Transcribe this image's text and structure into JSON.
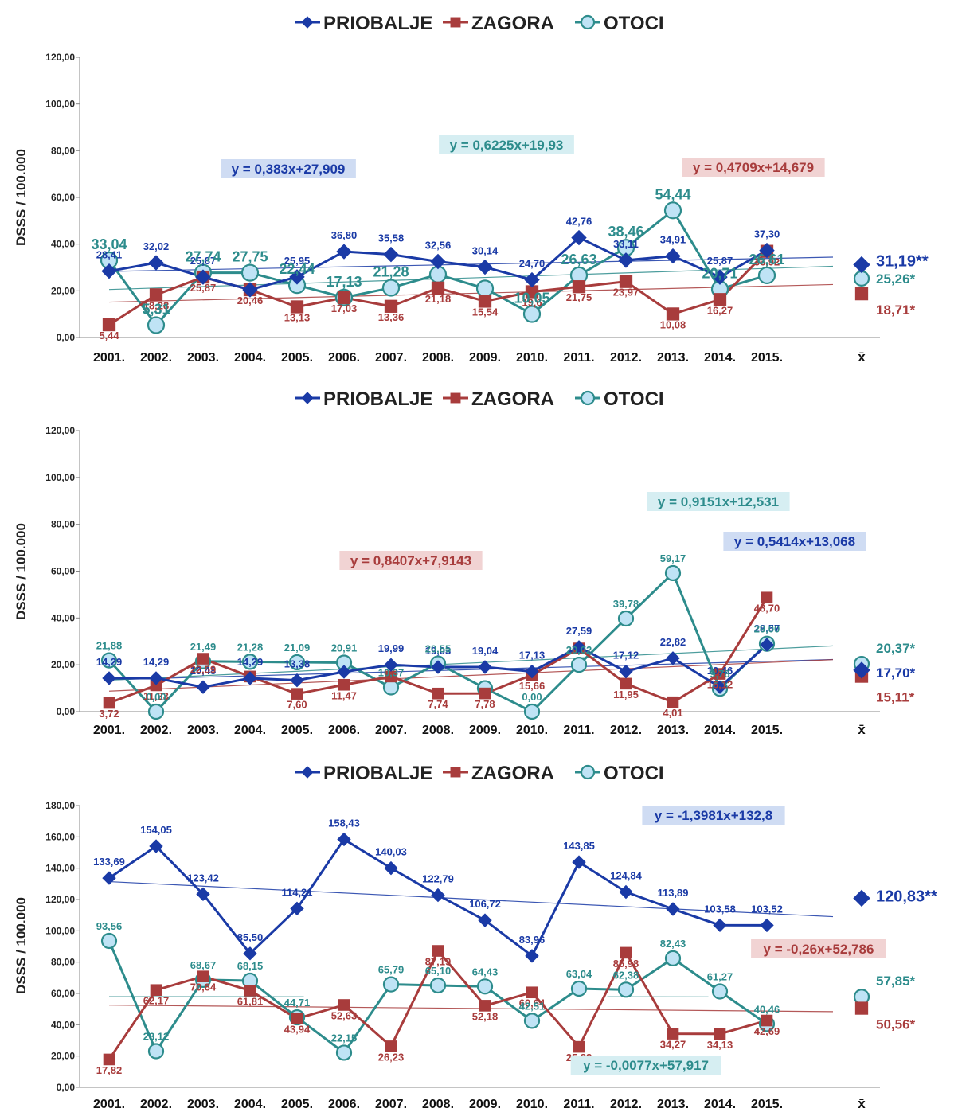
{
  "legend": {
    "series": [
      {
        "name": "PRIOBALJE",
        "color": "#1a3aa6",
        "marker": "diamond"
      },
      {
        "name": "ZAGORA",
        "color": "#a83c3c",
        "marker": "square"
      },
      {
        "name": "OTOCI",
        "color": "#2d8c8c",
        "marker": "circle"
      }
    ]
  },
  "colors": {
    "priobalje": "#1a3aa6",
    "zagora": "#a83c3c",
    "otoci": "#2d8c8c",
    "otoci_fill": "#bfe3f5",
    "blue_box": "#cfdcf3",
    "red_box": "#f1d3d3",
    "teal_box": "#d6eef2"
  },
  "chart_data": [
    {
      "type": "line",
      "ylabel": "DSSS / 100.000",
      "ylim": [
        0,
        120
      ],
      "yticks": [
        "0,00",
        "20,00",
        "40,00",
        "60,00",
        "80,00",
        "100,00",
        "120,00"
      ],
      "categories": [
        "2001.",
        "2002.",
        "2003.",
        "2004.",
        "2005.",
        "2006.",
        "2007.",
        "2008.",
        "2009.",
        "2010.",
        "2011.",
        "2012.",
        "2013.",
        "2014.",
        "2015."
      ],
      "mean_label": "x̄",
      "series": [
        {
          "name": "PRIOBALJE",
          "values": [
            28.41,
            32.02,
            25.87,
            20.46,
            25.95,
            36.8,
            35.58,
            32.56,
            30.14,
            24.7,
            42.76,
            33.11,
            34.91,
            25.87,
            37.3
          ],
          "labels": [
            "28,41",
            "32,02",
            "25,87",
            "",
            "25,95",
            "36,80",
            "35,58",
            "32,56",
            "30,14",
            "24,70",
            "42,76",
            "33,11",
            "34,91",
            "25,87",
            "37,30"
          ],
          "mean": 31.19,
          "mean_label": "31,19**",
          "trend": {
            "slope": 0.383,
            "intercept": 27.909,
            "equation": "y = 0,383x+27,909"
          }
        },
        {
          "name": "ZAGORA",
          "values": [
            5.44,
            18.28,
            25.87,
            20.46,
            13.13,
            17.03,
            13.36,
            21.18,
            15.54,
            19.6,
            21.75,
            23.97,
            10.08,
            16.27,
            36.92
          ],
          "labels": [
            "5,44",
            "18,28",
            "25,87",
            "20,46",
            "13,13",
            "17,03",
            "13,36",
            "21,18",
            "15,54",
            "19,6",
            "21,75",
            "23,97",
            "10,08",
            "16,27",
            "36,92"
          ],
          "mean": 18.71,
          "mean_label": "18,71*",
          "trend": {
            "slope": 0.4709,
            "intercept": 14.679,
            "equation": "y = 0,4709x+14,679"
          }
        },
        {
          "name": "OTOCI",
          "values": [
            33.04,
            5.31,
            27.74,
            27.75,
            22.44,
            17.13,
            21.28,
            27.0,
            21.0,
            10.05,
            26.63,
            38.46,
            54.44,
            20.71,
            26.61
          ],
          "labels": [
            "33,04",
            "5,31",
            "27,74",
            "27,75",
            "22,44",
            "17,13",
            "21,28",
            "",
            "",
            "10,05",
            "26,63",
            "38,46",
            "54,44",
            "20,71",
            "26,61"
          ],
          "mean": 25.26,
          "mean_label": "25,26*",
          "trend": {
            "slope": 0.6225,
            "intercept": 19.93,
            "equation": "y = 0,6225x+19,93"
          }
        }
      ]
    },
    {
      "type": "line",
      "ylabel": "DSSS / 100.000",
      "ylim": [
        0,
        120
      ],
      "yticks": [
        "0,00",
        "20,00",
        "40,00",
        "60,00",
        "80,00",
        "100,00",
        "120,00"
      ],
      "categories": [
        "2001.",
        "2002.",
        "2003.",
        "2004.",
        "2005.",
        "2006.",
        "2007.",
        "2008.",
        "2009.",
        "2010.",
        "2011.",
        "2012.",
        "2013.",
        "2014.",
        "2015."
      ],
      "mean_label": "x̄",
      "series": [
        {
          "name": "PRIOBALJE",
          "values": [
            14.29,
            14.29,
            10.48,
            14.29,
            13.38,
            17.0,
            19.99,
            19.03,
            19.04,
            17.13,
            27.59,
            17.12,
            22.82,
            10.46,
            28.57
          ],
          "labels": [
            "14,29",
            "14,29",
            "10,48",
            "14,29",
            "13,38",
            "",
            "19,99",
            "19,03",
            "19,04",
            "17,13",
            "27,59",
            "17,12",
            "22,82",
            "10,46",
            "28,57"
          ],
          "mean": 17.7,
          "mean_label": "17,70*",
          "trend": {
            "slope": 0.5414,
            "intercept": 13.068,
            "equation": "y = 0,5414x+13,068"
          }
        },
        {
          "name": "ZAGORA",
          "values": [
            3.72,
            11.23,
            22.59,
            15.0,
            7.6,
            11.47,
            15.0,
            7.74,
            7.78,
            15.66,
            27.0,
            11.95,
            4.01,
            16.12,
            48.7
          ],
          "labels": [
            "3,72",
            "11,23",
            "22,59",
            "",
            "7,60",
            "11,47",
            "",
            "7,74",
            "7,78",
            "15,66",
            "",
            "11,95",
            "4,01",
            "16,12",
            "48,70"
          ],
          "mean": 15.11,
          "mean_label": "15,11*",
          "trend": {
            "slope": 0.8407,
            "intercept": 7.9143,
            "equation": "y = 0,8407x+7,9143"
          }
        },
        {
          "name": "OTOCI",
          "values": [
            21.88,
            0.0,
            21.49,
            21.28,
            21.09,
            20.91,
            10.37,
            20.55,
            10.0,
            0.0,
            20.02,
            39.78,
            59.17,
            9.78,
            29.0
          ],
          "labels": [
            "21,88",
            "0,00",
            "21,49",
            "21,28",
            "21,09",
            "20,91",
            "10,37",
            "20,55",
            "",
            "0,00",
            "20,02",
            "39,78",
            "59,17",
            "9,78",
            "29,00"
          ],
          "mean": 20.37,
          "mean_label": "20,37*",
          "trend": {
            "slope": 0.9151,
            "intercept": 12.531,
            "equation": "y = 0,9151x+12,531"
          }
        }
      ]
    },
    {
      "type": "line",
      "ylabel": "DSSS / 100.000",
      "ylim": [
        0,
        180
      ],
      "yticks": [
        "0,00",
        "20,00",
        "40,00",
        "60,00",
        "80,00",
        "100,00",
        "120,00",
        "140,00",
        "160,00",
        "180,00"
      ],
      "categories": [
        "2001.",
        "2002.",
        "2003.",
        "2004.",
        "2005.",
        "2006.",
        "2007.",
        "2008.",
        "2009.",
        "2010.",
        "2011.",
        "2012.",
        "2013.",
        "2014.",
        "2015."
      ],
      "mean_label": "x̄",
      "series": [
        {
          "name": "PRIOBALJE",
          "values": [
            133.69,
            154.05,
            123.42,
            85.5,
            114.21,
            158.43,
            140.03,
            122.79,
            106.72,
            83.96,
            143.85,
            124.84,
            113.89,
            103.58,
            103.52
          ],
          "labels": [
            "133,69",
            "154,05",
            "123,42",
            "85,50",
            "114,21",
            "158,43",
            "140,03",
            "122,79",
            "106,72",
            "83,96",
            "143,85",
            "124,84",
            "113,89",
            "103,58",
            "103,52"
          ],
          "mean": 120.83,
          "mean_label": "120,83**",
          "trend": {
            "slope": -1.3981,
            "intercept": 132.8,
            "equation": "y = -1,3981x+132,8"
          }
        },
        {
          "name": "ZAGORA",
          "values": [
            17.82,
            62.17,
            70.84,
            61.81,
            43.94,
            52.63,
            26.23,
            87.19,
            52.18,
            60.64,
            25.88,
            85.98,
            34.27,
            34.13,
            42.69
          ],
          "labels": [
            "17,82",
            "62,17",
            "70,84",
            "61,81",
            "43,94",
            "52,63",
            "26,23",
            "87,19",
            "52,18",
            "60,64",
            "25,88",
            "85,98",
            "34,27",
            "34,13",
            "42,69"
          ],
          "mean": 50.56,
          "mean_label": "50,56*",
          "trend": {
            "slope": -0.26,
            "intercept": 52.786,
            "equation": "y = -0,26x+52,786"
          }
        },
        {
          "name": "OTOCI",
          "values": [
            93.56,
            23.12,
            68.67,
            68.15,
            44.71,
            22.15,
            65.79,
            65.1,
            64.43,
            42.51,
            63.04,
            62.38,
            82.43,
            61.27,
            40.46
          ],
          "labels": [
            "93,56",
            "23,12",
            "68,67",
            "68,15",
            "44,71",
            "22,15",
            "65,79",
            "65,10",
            "64,43",
            "42,51",
            "63,04",
            "62,38",
            "82,43",
            "61,27",
            "40,46"
          ],
          "mean": 57.85,
          "mean_label": "57,85*",
          "trend": {
            "slope": -0.0077,
            "intercept": 57.917,
            "equation": "y = -0,0077x+57,917"
          }
        }
      ]
    }
  ]
}
